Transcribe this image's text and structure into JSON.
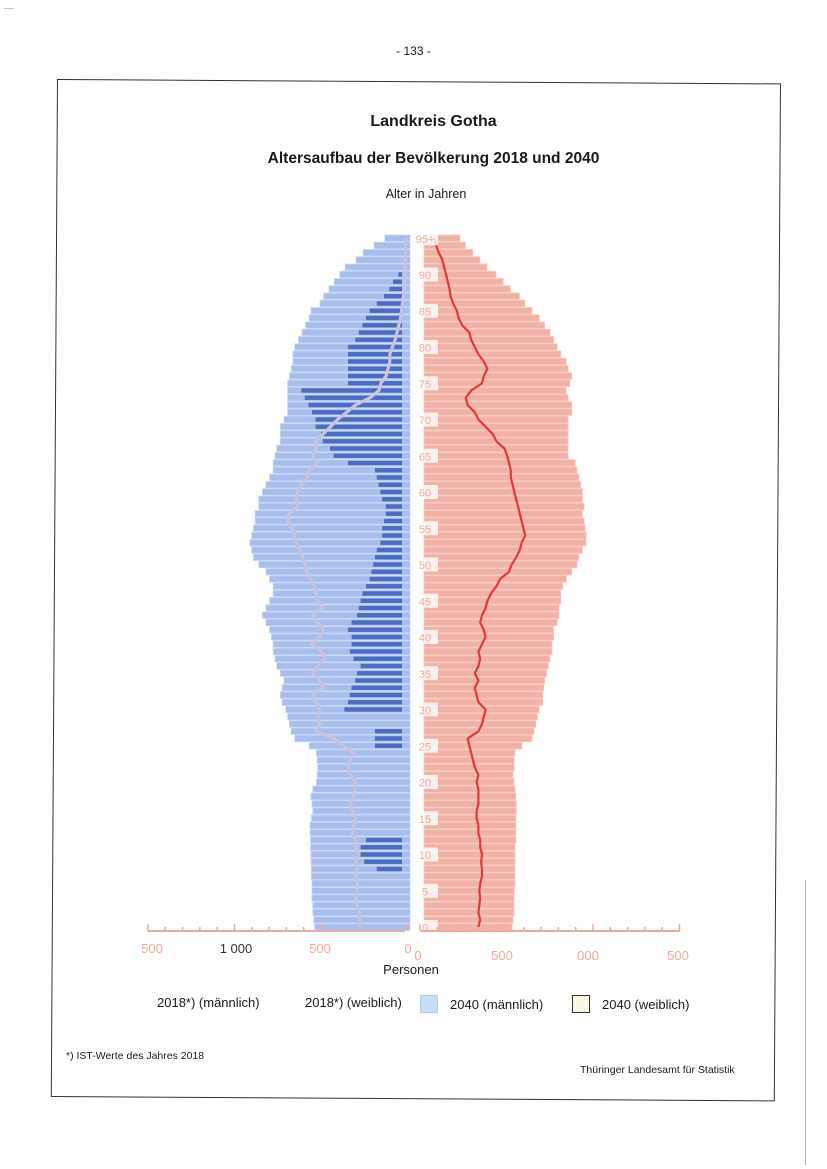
{
  "page_number": "- 133 -",
  "title": "Landkreis Gotha",
  "subtitle": "Altersaufbau der Bevölkerung 2018 und 2040",
  "legend": [
    {
      "label": "2018*) (männlich)",
      "swatch": ""
    },
    {
      "label": "2018*) (weiblich)",
      "swatch": ""
    },
    {
      "label": "2040 (männlich)",
      "swatch": "#c6ddf5"
    },
    {
      "label": "2040 (weiblich)",
      "swatch": "#fbf5e4"
    }
  ],
  "footnote": "*) IST-Werte des Jahres 2018",
  "source": "Thüringer Landesamt für Statistik",
  "colors": {
    "male_2040": "#a6bdee",
    "female_2040": "#f2b1a7",
    "male_2018_bar": "#3b5fb8",
    "male_2018_line": "#c9c3e0",
    "female_2018_line": "#e03a3a",
    "axis": "#f0a89d"
  },
  "chart_data": {
    "type": "bar",
    "title": "",
    "ylabel": "Alter in Jahren",
    "xlabel": "Personen",
    "x_ticks_left": [
      "500",
      "1 000",
      "500",
      "0"
    ],
    "x_ticks_right": [
      "0",
      "500",
      "000",
      "500"
    ],
    "age_labels": [
      "95+",
      "90",
      "85",
      "80",
      "75",
      "70",
      "65",
      "60",
      "55",
      "50",
      "45",
      "40",
      "35",
      "30",
      "25",
      "20",
      "15",
      "10",
      "5",
      "0"
    ],
    "age_label_values": [
      95,
      90,
      85,
      80,
      75,
      70,
      65,
      60,
      55,
      50,
      45,
      40,
      35,
      30,
      25,
      20,
      15,
      10,
      5,
      0
    ],
    "ages": [
      0,
      1,
      2,
      3,
      4,
      5,
      6,
      7,
      8,
      9,
      10,
      11,
      12,
      13,
      14,
      15,
      16,
      17,
      18,
      19,
      20,
      21,
      22,
      23,
      24,
      25,
      26,
      27,
      28,
      29,
      30,
      31,
      32,
      33,
      34,
      35,
      36,
      37,
      38,
      39,
      40,
      41,
      42,
      43,
      44,
      45,
      46,
      47,
      48,
      49,
      50,
      51,
      52,
      53,
      54,
      55,
      56,
      57,
      58,
      59,
      60,
      61,
      62,
      63,
      64,
      65,
      66,
      67,
      68,
      69,
      70,
      71,
      72,
      73,
      74,
      75,
      76,
      77,
      78,
      79,
      80,
      81,
      82,
      83,
      84,
      85,
      86,
      87,
      88,
      89,
      90,
      91,
      92,
      93,
      94,
      95
    ],
    "series": [
      {
        "name": "2040 (männlich)",
        "values": [
          530,
          535,
          540,
          540,
          545,
          545,
          545,
          548,
          548,
          550,
          550,
          552,
          552,
          555,
          555,
          548,
          540,
          545,
          550,
          540,
          520,
          515,
          512,
          515,
          520,
          560,
          640,
          660,
          670,
          680,
          690,
          710,
          720,
          710,
          700,
          720,
          740,
          750,
          760,
          760,
          770,
          780,
          800,
          820,
          800,
          780,
          760,
          760,
          780,
          800,
          840,
          870,
          880,
          890,
          880,
          870,
          860,
          860,
          840,
          840,
          820,
          800,
          780,
          760,
          760,
          750,
          740,
          720,
          720,
          720,
          700,
          680,
          680,
          680,
          680,
          680,
          670,
          660,
          650,
          650,
          640,
          620,
          600,
          580,
          560,
          550,
          500,
          480,
          450,
          420,
          390,
          360,
          300,
          260,
          200,
          140
        ]
      },
      {
        "name": "2040 (weiblich)",
        "values": [
          490,
          495,
          500,
          500,
          500,
          502,
          505,
          505,
          505,
          505,
          505,
          505,
          510,
          510,
          510,
          510,
          512,
          512,
          510,
          505,
          500,
          495,
          500,
          500,
          505,
          545,
          600,
          610,
          620,
          630,
          640,
          660,
          660,
          665,
          670,
          680,
          690,
          700,
          710,
          710,
          720,
          720,
          740,
          750,
          750,
          760,
          760,
          770,
          790,
          820,
          850,
          860,
          880,
          900,
          900,
          895,
          890,
          880,
          890,
          880,
          880,
          870,
          860,
          850,
          840,
          800,
          800,
          800,
          800,
          800,
          800,
          820,
          820,
          800,
          790,
          810,
          820,
          800,
          790,
          760,
          740,
          720,
          700,
          670,
          640,
          600,
          560,
          530,
          480,
          440,
          400,
          350,
          310,
          270,
          230,
          200
        ]
      },
      {
        "name": "2018*) (männlich)",
        "values": [
          null,
          null,
          null,
          null,
          null,
          null,
          null,
          null,
          140,
          210,
          230,
          230,
          200,
          null,
          null,
          null,
          null,
          null,
          null,
          null,
          null,
          null,
          null,
          null,
          null,
          150,
          150,
          150,
          null,
          null,
          320,
          300,
          290,
          280,
          260,
          250,
          230,
          270,
          290,
          280,
          280,
          300,
          280,
          250,
          240,
          230,
          220,
          200,
          180,
          170,
          160,
          150,
          140,
          120,
          110,
          110,
          100,
          90,
          90,
          110,
          120,
          130,
          140,
          150,
          300,
          380,
          400,
          440,
          450,
          480,
          480,
          500,
          520,
          540,
          560,
          300,
          300,
          300,
          300,
          300,
          300,
          260,
          240,
          220,
          200,
          180,
          140,
          100,
          70,
          50,
          20,
          null,
          null,
          null,
          null,
          null
        ]
      },
      {
        "name": "2018*) (weiblich)",
        "values": [
          null,
          null,
          null,
          null,
          null,
          null,
          null,
          null,
          null,
          null,
          null,
          null,
          null,
          null,
          null,
          null,
          null,
          null,
          null,
          null,
          null,
          null,
          null,
          null,
          null,
          null,
          null,
          null,
          null,
          null,
          null,
          null,
          null,
          null,
          null,
          null,
          null,
          null,
          null,
          null,
          null,
          null,
          null,
          null,
          null,
          null,
          null,
          null,
          null,
          null,
          null,
          null,
          null,
          null,
          null,
          null,
          null,
          null,
          null,
          null,
          null,
          null,
          null,
          null,
          null,
          null,
          null,
          null,
          null,
          null,
          null,
          null,
          null,
          null,
          null,
          null,
          null,
          null,
          null,
          null,
          null,
          null,
          null,
          null,
          null,
          null,
          null,
          null,
          null,
          null,
          null,
          null,
          null,
          null,
          null,
          null
        ]
      },
      {
        "name": "2018*) (männlich) Linie",
        "values": [
          520,
          510,
          520,
          540,
          560,
          540,
          540,
          560,
          540,
          560,
          530,
          560,
          560,
          600,
          580,
          560,
          600,
          620,
          580,
          570,
          560,
          620,
          640,
          620,
          580,
          700,
          800,
          1000,
          960,
          980,
          960,
          990,
          1040,
          920,
          960,
          1040,
          980,
          900,
          940,
          1050,
          960,
          920,
          980,
          1040,
          920,
          980,
          1000,
          1020,
          1060,
          1100,
          1120,
          1150,
          1180,
          1220,
          1240,
          1260,
          1320,
          1300,
          1200,
          1220,
          1210,
          1160,
          1100,
          1080,
          980,
          1040,
          1000,
          1000,
          920,
          840,
          760,
          660,
          560,
          400,
          300,
          280,
          220,
          200,
          180,
          180,
          150,
          120,
          100,
          80,
          60,
          50,
          40,
          30,
          20,
          20,
          10,
          10,
          10,
          5,
          5,
          5
        ]
      },
      {
        "name": "2018*) (weiblich) Linie",
        "values": [
          560,
          580,
          560,
          570,
          580,
          570,
          580,
          600,
          600,
          590,
          600,
          580,
          580,
          560,
          560,
          540,
          540,
          560,
          560,
          560,
          540,
          560,
          520,
          500,
          480,
          460,
          440,
          560,
          600,
          620,
          640,
          560,
          540,
          520,
          560,
          520,
          560,
          580,
          560,
          600,
          640,
          620,
          580,
          600,
          640,
          660,
          700,
          760,
          800,
          900,
          930,
          980,
          1020,
          1040,
          1080,
          1060,
          1040,
          1020,
          1000,
          980,
          960,
          940,
          920,
          920,
          900,
          880,
          850,
          760,
          720,
          640,
          560,
          520,
          440,
          420,
          480,
          600,
          620,
          660,
          620,
          560,
          520,
          480,
          460,
          380,
          340,
          320,
          280,
          250,
          240,
          220,
          200,
          180,
          160,
          120,
          90,
          60
        ]
      }
    ],
    "xlim": [
      -1500,
      1500
    ]
  }
}
